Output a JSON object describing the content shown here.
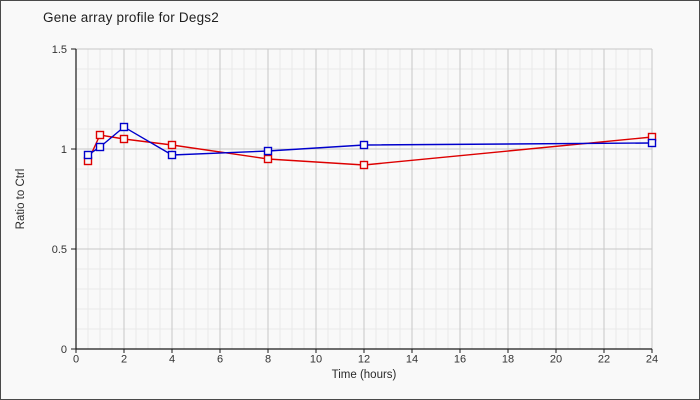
{
  "window": {
    "background": "#f9f9f9",
    "border_color": "#4a4a4a"
  },
  "chart_data": {
    "type": "line",
    "title": "Gene array profile for Degs2",
    "xlabel": "Time (hours)",
    "ylabel": "Ratio to Ctrl",
    "x": [
      0.5,
      1,
      2,
      4,
      8,
      12,
      24
    ],
    "series": [
      {
        "name": "red",
        "color": "#dd0000",
        "marker": "open-square",
        "values": [
          0.94,
          1.07,
          1.05,
          1.02,
          0.95,
          0.92,
          1.06
        ]
      },
      {
        "name": "blue",
        "color": "#0000cc",
        "marker": "open-square",
        "values": [
          0.97,
          1.01,
          1.11,
          0.97,
          0.99,
          1.02,
          1.03
        ]
      }
    ],
    "xlim": [
      0,
      24
    ],
    "ylim": [
      0,
      1.5
    ],
    "x_major_ticks": [
      0,
      2,
      4,
      6,
      8,
      10,
      12,
      14,
      16,
      18,
      20,
      22,
      24
    ],
    "x_tick_labels": [
      "0",
      "2",
      "4",
      "6",
      "8",
      "10",
      "12",
      "14",
      "16",
      "18",
      "20",
      "22",
      "24"
    ],
    "y_major_ticks": [
      0,
      0.5,
      1,
      1.5
    ],
    "y_tick_labels": [
      "0",
      "0.5",
      "1",
      "1.5"
    ],
    "x_minor_step": 0.5,
    "y_minor_step": 0.1,
    "grid": true,
    "legend": "none",
    "colors": {
      "axis": "#1a1a1a",
      "grid_minor": "#e9e9e9",
      "grid_major": "#c8c8c8",
      "tick_label": "#333333",
      "marker_fill": "#f9f9f9"
    }
  }
}
